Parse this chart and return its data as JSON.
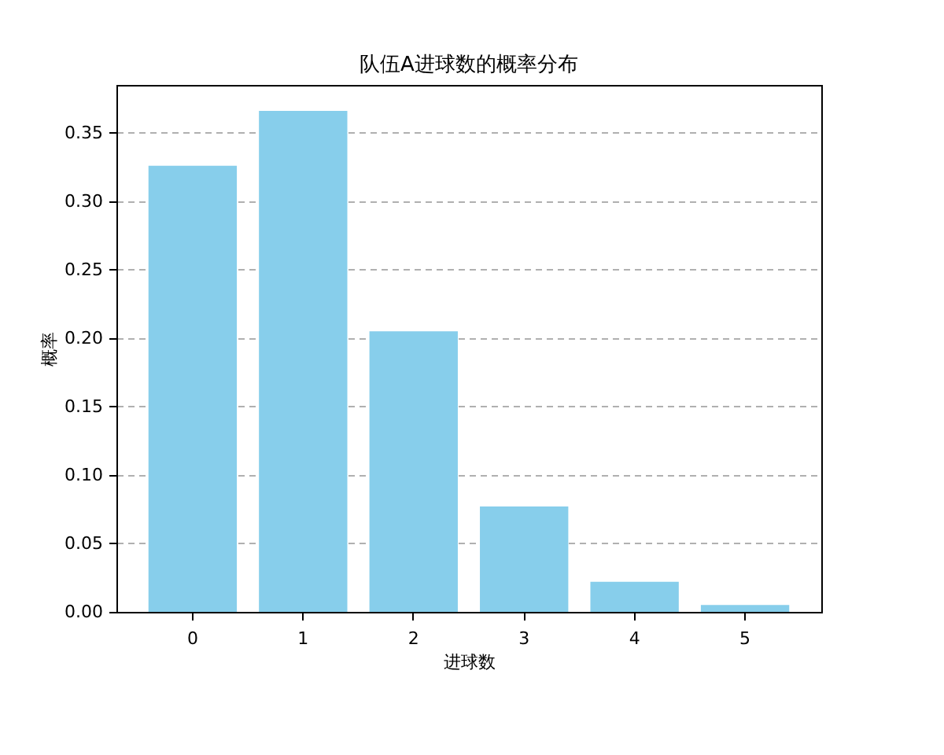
{
  "chart_data": {
    "type": "bar",
    "title": "队伍A进球数的概率分布",
    "xlabel": "进球数",
    "ylabel": "概率",
    "categories": [
      "0",
      "1",
      "2",
      "3",
      "4",
      "5"
    ],
    "values": [
      0.326,
      0.366,
      0.205,
      0.077,
      0.022,
      0.005
    ],
    "color": "#87ceeb",
    "ylim": [
      0,
      0.385
    ],
    "yticks": [
      {
        "value": 0,
        "label": "0.00"
      },
      {
        "value": 0.05,
        "label": "0.05"
      },
      {
        "value": 0.1,
        "label": "0.10"
      },
      {
        "value": 0.15,
        "label": "0.15"
      },
      {
        "value": 0.2,
        "label": "0.20"
      },
      {
        "value": 0.25,
        "label": "0.25"
      },
      {
        "value": 0.3,
        "label": "0.30"
      },
      {
        "value": 0.35,
        "label": "0.35"
      }
    ],
    "grid": "y"
  }
}
